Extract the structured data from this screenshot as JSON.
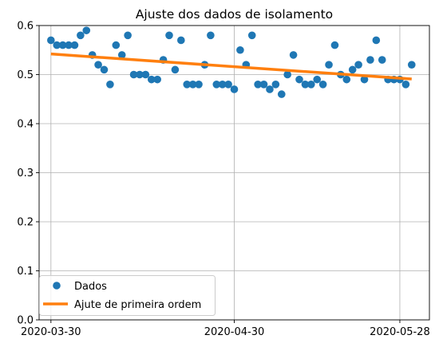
{
  "chart_data": {
    "type": "scatter",
    "title": "Ajuste dos dados de isolamento",
    "xlabel": "",
    "ylabel": "",
    "x_axis": {
      "type": "date",
      "range": [
        "2020-03-28",
        "2020-06-02"
      ],
      "ticks": [
        "2020-03-30",
        "2020-04-30",
        "2020-05-28"
      ]
    },
    "y_axis": {
      "range": [
        0.0,
        0.6
      ],
      "ticks": [
        0.0,
        0.1,
        0.2,
        0.3,
        0.4,
        0.5,
        0.6
      ],
      "tick_labels": [
        "0.0",
        "0.1",
        "0.2",
        "0.3",
        "0.4",
        "0.5",
        "0.6"
      ]
    },
    "grid": true,
    "legend": {
      "placement": "lower-left"
    },
    "series": [
      {
        "name": "Dados",
        "kind": "scatter",
        "color": "#1f77b4",
        "points": [
          [
            "2020-03-30",
            0.57
          ],
          [
            "2020-03-31",
            0.56
          ],
          [
            "2020-04-01",
            0.56
          ],
          [
            "2020-04-02",
            0.56
          ],
          [
            "2020-04-03",
            0.56
          ],
          [
            "2020-04-04",
            0.58
          ],
          [
            "2020-04-05",
            0.59
          ],
          [
            "2020-04-06",
            0.54
          ],
          [
            "2020-04-07",
            0.52
          ],
          [
            "2020-04-08",
            0.51
          ],
          [
            "2020-04-09",
            0.48
          ],
          [
            "2020-04-10",
            0.56
          ],
          [
            "2020-04-11",
            0.54
          ],
          [
            "2020-04-12",
            0.58
          ],
          [
            "2020-04-13",
            0.5
          ],
          [
            "2020-04-14",
            0.5
          ],
          [
            "2020-04-15",
            0.5
          ],
          [
            "2020-04-16",
            0.49
          ],
          [
            "2020-04-17",
            0.49
          ],
          [
            "2020-04-18",
            0.53
          ],
          [
            "2020-04-19",
            0.58
          ],
          [
            "2020-04-20",
            0.51
          ],
          [
            "2020-04-21",
            0.57
          ],
          [
            "2020-04-22",
            0.48
          ],
          [
            "2020-04-23",
            0.48
          ],
          [
            "2020-04-24",
            0.48
          ],
          [
            "2020-04-25",
            0.52
          ],
          [
            "2020-04-26",
            0.58
          ],
          [
            "2020-04-27",
            0.48
          ],
          [
            "2020-04-28",
            0.48
          ],
          [
            "2020-04-29",
            0.48
          ],
          [
            "2020-04-30",
            0.47
          ],
          [
            "2020-05-01",
            0.55
          ],
          [
            "2020-05-02",
            0.52
          ],
          [
            "2020-05-03",
            0.58
          ],
          [
            "2020-05-04",
            0.48
          ],
          [
            "2020-05-05",
            0.48
          ],
          [
            "2020-05-06",
            0.47
          ],
          [
            "2020-05-07",
            0.48
          ],
          [
            "2020-05-08",
            0.46
          ],
          [
            "2020-05-09",
            0.5
          ],
          [
            "2020-05-10",
            0.54
          ],
          [
            "2020-05-11",
            0.49
          ],
          [
            "2020-05-12",
            0.48
          ],
          [
            "2020-05-13",
            0.48
          ],
          [
            "2020-05-14",
            0.49
          ],
          [
            "2020-05-15",
            0.48
          ],
          [
            "2020-05-16",
            0.52
          ],
          [
            "2020-05-17",
            0.56
          ],
          [
            "2020-05-18",
            0.5
          ],
          [
            "2020-05-19",
            0.49
          ],
          [
            "2020-05-20",
            0.51
          ],
          [
            "2020-05-21",
            0.52
          ],
          [
            "2020-05-22",
            0.49
          ],
          [
            "2020-05-23",
            0.53
          ],
          [
            "2020-05-24",
            0.57
          ],
          [
            "2020-05-25",
            0.53
          ],
          [
            "2020-05-26",
            0.49
          ],
          [
            "2020-05-27",
            0.49
          ],
          [
            "2020-05-28",
            0.49
          ],
          [
            "2020-05-29",
            0.48
          ],
          [
            "2020-05-30",
            0.52
          ]
        ]
      },
      {
        "name": "Ajute de primeira ordem",
        "kind": "line",
        "color": "#ff7f0e",
        "points": [
          [
            "2020-03-30",
            0.542
          ],
          [
            "2020-05-30",
            0.491
          ]
        ]
      }
    ]
  }
}
